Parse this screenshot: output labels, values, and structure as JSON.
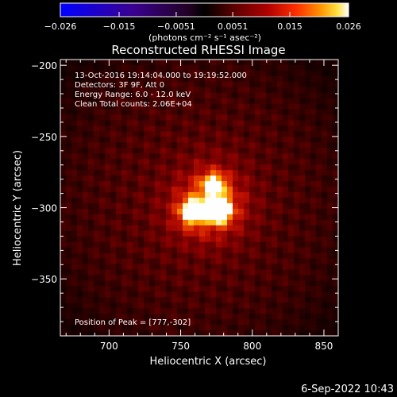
{
  "colorbar": {
    "ticks": [
      "-0.026",
      "-0.015",
      "-0.0051",
      "0.0051",
      "0.015",
      "0.026"
    ],
    "unit_label": "(photons cm⁻² s⁻¹ asec⁻²)",
    "min": -0.026,
    "max": 0.026
  },
  "chart_data": {
    "type": "heatmap",
    "title": "Reconstructed RHESSI Image",
    "xlabel": "Heliocentric X (arcsec)",
    "ylabel": "Heliocentric Y (arcsec)",
    "xlim": [
      666,
      860
    ],
    "ylim": [
      -390,
      -196
    ],
    "xticks": [
      700,
      750,
      800,
      850
    ],
    "yticks": [
      -200,
      -250,
      -300,
      -350
    ],
    "xtick_labels": [
      "700",
      "750",
      "800",
      "850"
    ],
    "ytick_labels": [
      "−200",
      "−250",
      "−300",
      "−350"
    ],
    "annotations": [
      "13-Oct-2016 19:14:04.000 to 19:19:52.000",
      "Detectors: 3F 9F, Att 0",
      "Energy Range: 6.0 - 12.0 keV",
      "Clean     Total counts: 2.06E+04"
    ],
    "peak_label": "Position of Peak = [777,-302]",
    "sources": [
      {
        "x": 777,
        "y": -302,
        "peak": 0.026
      },
      {
        "x": 758,
        "y": -303,
        "peak": 0.022
      },
      {
        "x": 773,
        "y": -284,
        "peak": 0.017
      }
    ],
    "background_level": 0.009
  },
  "timestamp": "6-Sep-2022 10:43"
}
